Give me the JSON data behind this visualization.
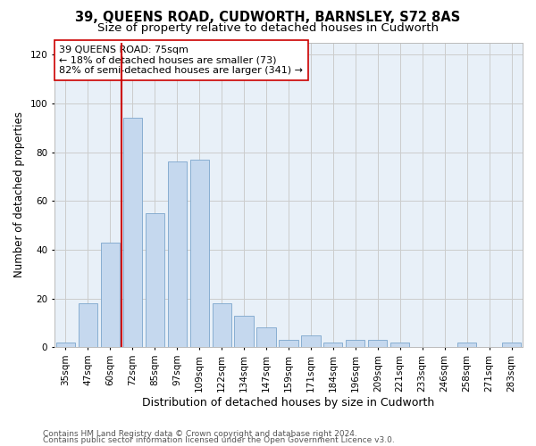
{
  "title": "39, QUEENS ROAD, CUDWORTH, BARNSLEY, S72 8AS",
  "subtitle": "Size of property relative to detached houses in Cudworth",
  "xlabel": "Distribution of detached houses by size in Cudworth",
  "ylabel": "Number of detached properties",
  "categories": [
    "35sqm",
    "47sqm",
    "60sqm",
    "72sqm",
    "85sqm",
    "97sqm",
    "109sqm",
    "122sqm",
    "134sqm",
    "147sqm",
    "159sqm",
    "171sqm",
    "184sqm",
    "196sqm",
    "209sqm",
    "221sqm",
    "233sqm",
    "246sqm",
    "258sqm",
    "271sqm",
    "283sqm"
  ],
  "values": [
    2,
    18,
    43,
    94,
    55,
    76,
    77,
    18,
    13,
    8,
    3,
    5,
    2,
    3,
    3,
    2,
    0,
    0,
    2,
    0,
    2
  ],
  "bar_color": "#c5d8ee",
  "bar_edge_color": "#7ca6cc",
  "vline_x_index": 3,
  "vline_color": "#cc0000",
  "annotation_text": "39 QUEENS ROAD: 75sqm\n← 18% of detached houses are smaller (73)\n82% of semi-detached houses are larger (341) →",
  "annotation_box_color": "#ffffff",
  "annotation_box_edge": "#cc0000",
  "ylim": [
    0,
    125
  ],
  "yticks": [
    0,
    20,
    40,
    60,
    80,
    100,
    120
  ],
  "background_color": "#ffffff",
  "plot_bg_color": "#e8f0f8",
  "grid_color": "#cccccc",
  "footer_line1": "Contains HM Land Registry data © Crown copyright and database right 2024.",
  "footer_line2": "Contains public sector information licensed under the Open Government Licence v3.0.",
  "title_fontsize": 10.5,
  "subtitle_fontsize": 9.5,
  "xlabel_fontsize": 9,
  "ylabel_fontsize": 8.5,
  "tick_fontsize": 7.5,
  "annotation_fontsize": 8,
  "footer_fontsize": 6.5
}
